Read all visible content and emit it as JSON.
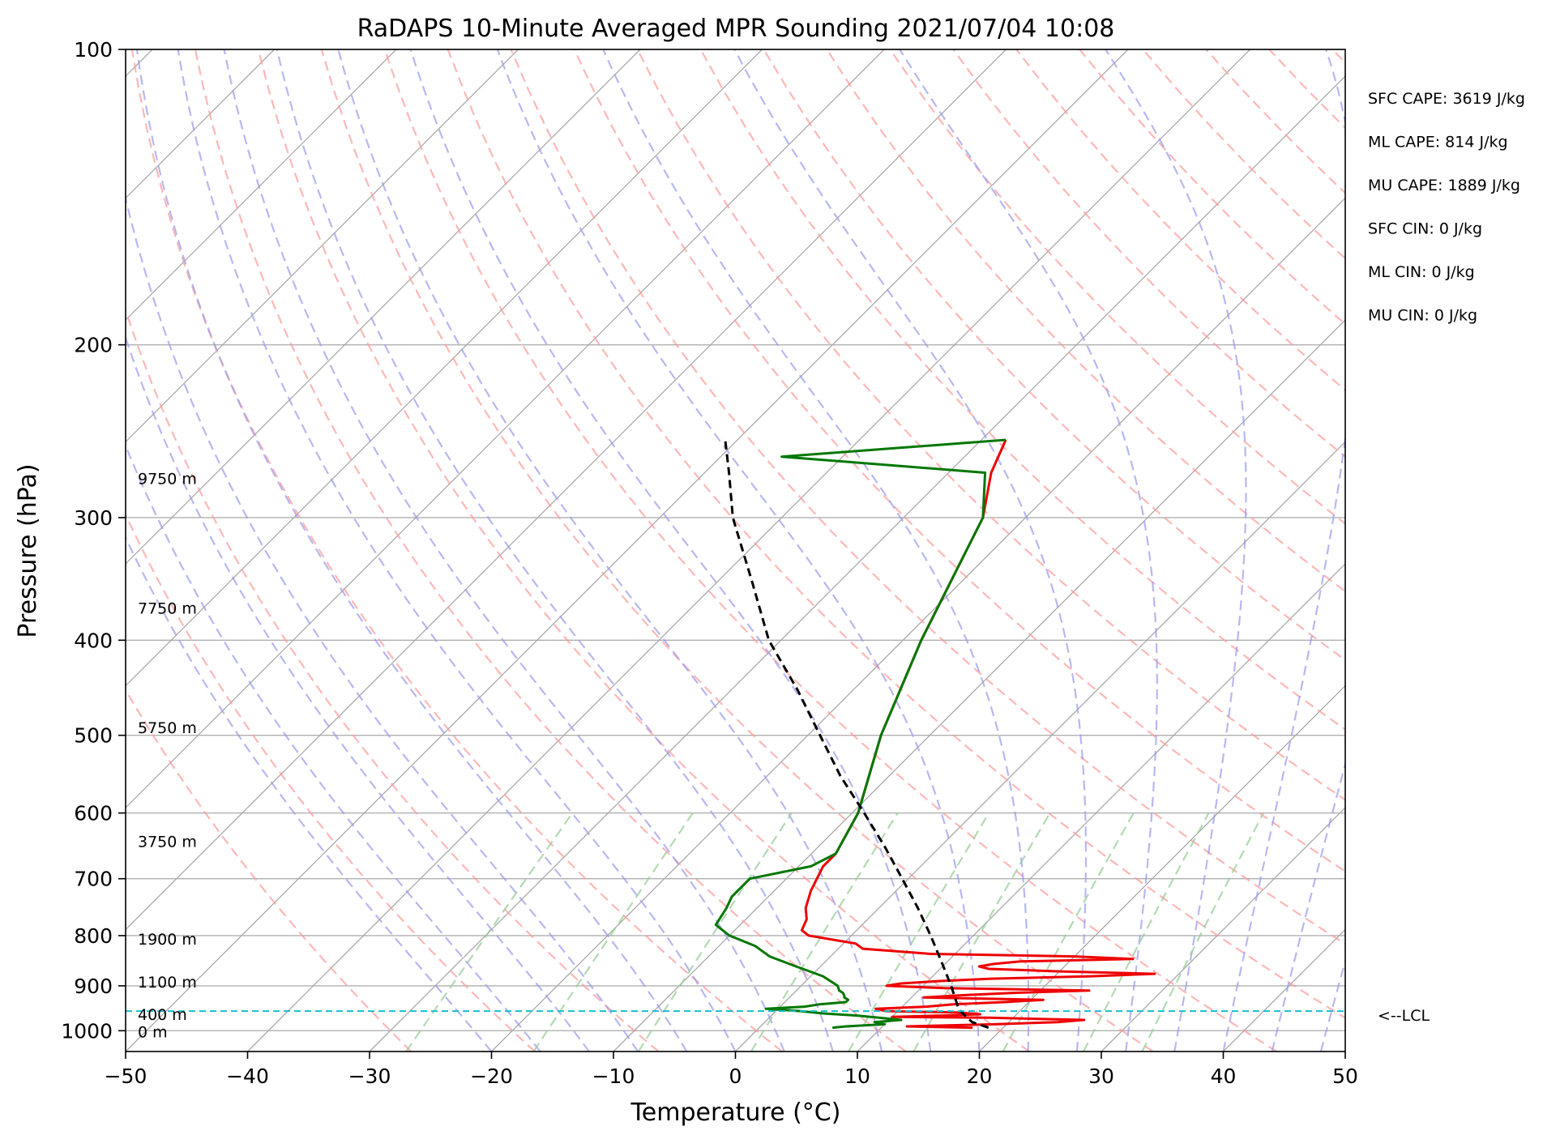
{
  "chart_data": {
    "type": "skew-t",
    "title": "RaDAPS 10-Minute Averaged MPR Sounding 2021/07/04 10:08",
    "xlabel": "Temperature (°C)",
    "ylabel": "Pressure (hPa)",
    "xlim": [
      -50,
      50
    ],
    "ylim": [
      1050,
      100
    ],
    "y_scale": "log",
    "x_ticks": [
      -50,
      -40,
      -30,
      -20,
      -10,
      0,
      10,
      20,
      30,
      40,
      50
    ],
    "x_tick_labels": [
      "−50",
      "−40",
      "−30",
      "−20",
      "−10",
      "0",
      "10",
      "20",
      "30",
      "40",
      "50"
    ],
    "y_ticks": [
      100,
      200,
      300,
      400,
      500,
      600,
      700,
      800,
      900,
      1000
    ],
    "y_tick_labels": [
      "100",
      "200",
      "300",
      "400",
      "500",
      "600",
      "700",
      "800",
      "900",
      "1000"
    ],
    "grid": true,
    "colors": {
      "temperature": "#ee0000",
      "dewpoint": "#007700",
      "parcel": "#000000",
      "lcl": "#17becf",
      "isotherms": "#a8a8a8",
      "dry_adiabats": "#ff9999",
      "moist_adiabats": "#9999ee",
      "mixing_ratio": "#99cc99"
    },
    "series": [
      {
        "key": "temperature",
        "pressure": [
          993,
          990,
          985,
          980,
          975,
          970,
          968,
          965,
          962,
          958,
          955,
          950,
          945,
          940,
          935,
          930,
          925,
          920,
          915,
          910,
          905,
          900,
          895,
          890,
          885,
          880,
          875,
          870,
          865,
          860,
          855,
          850,
          845,
          840,
          835,
          825,
          815,
          800,
          790,
          770,
          750,
          720,
          680,
          660,
          600,
          500,
          400,
          300,
          270,
          250
        ],
        "temp": [
          17.5,
          12,
          19,
          24,
          26,
          18,
          10,
          14,
          17,
          15,
          9,
          8,
          12,
          14,
          18,
          21,
          11,
          14,
          18,
          24,
          12,
          7,
          8,
          11,
          15,
          23,
          28,
          20,
          14,
          13,
          14,
          16,
          25,
          20,
          8,
          2,
          1,
          -3.5,
          -4.5,
          -5,
          -6,
          -7,
          -8,
          -8,
          -9.5,
          -14,
          -18.5,
          -23.5,
          -26.5,
          -28
        ]
      },
      {
        "key": "dewpoint",
        "pressure": [
          993,
          990,
          985,
          980,
          975,
          970,
          965,
          960,
          955,
          950,
          945,
          940,
          935,
          930,
          925,
          920,
          915,
          910,
          900,
          880,
          860,
          840,
          820,
          800,
          780,
          750,
          730,
          700,
          680,
          660,
          600,
          500,
          400,
          300,
          270,
          260,
          250
        ],
        "dewp": [
          6,
          7,
          10,
          9,
          11,
          9,
          7,
          4,
          2,
          -1,
          2,
          3,
          5,
          5,
          4.5,
          4.3,
          4,
          3.5,
          3,
          1,
          -2,
          -5,
          -7,
          -10,
          -12,
          -12.5,
          -13,
          -13,
          -9,
          -8,
          -9.5,
          -14,
          -18.5,
          -23.5,
          -27,
          -45,
          -28
        ]
      },
      {
        "key": "parcel",
        "pressure": [
          993,
          980,
          960,
          950,
          900,
          850,
          800,
          750,
          700,
          650,
          600,
          550,
          500,
          450,
          400,
          350,
          300,
          270,
          250
        ],
        "temp": [
          18.8,
          17,
          15.5,
          14.8,
          12.3,
          9.5,
          6.5,
          3.2,
          -0.5,
          -4.5,
          -9,
          -14,
          -19,
          -24.5,
          -31,
          -37,
          -44,
          -48,
          -51
        ]
      }
    ],
    "lcl": {
      "pressure": 955,
      "label": "<--LCL"
    },
    "height_labels": [
      {
        "label": "0 m",
        "pressure": 1000
      },
      {
        "label": "400 m",
        "pressure": 960
      },
      {
        "label": "1100 m",
        "pressure": 890
      },
      {
        "label": "1900 m",
        "pressure": 805
      },
      {
        "label": "3750 m",
        "pressure": 640
      },
      {
        "label": "5750 m",
        "pressure": 490
      },
      {
        "label": "7750 m",
        "pressure": 370
      },
      {
        "label": "9750 m",
        "pressure": 273
      }
    ],
    "annotations": [
      "SFC CAPE: 3619 J/kg",
      "ML CAPE: 814 J/kg",
      "MU CAPE: 1889 J/kg",
      "SFC CIN: 0 J/kg",
      "ML CIN: 0 J/kg",
      "MU CIN: 0 J/kg"
    ],
    "mixing_ratios_gkg": [
      0.4,
      1,
      2,
      4,
      7,
      10,
      16,
      24,
      32
    ]
  }
}
